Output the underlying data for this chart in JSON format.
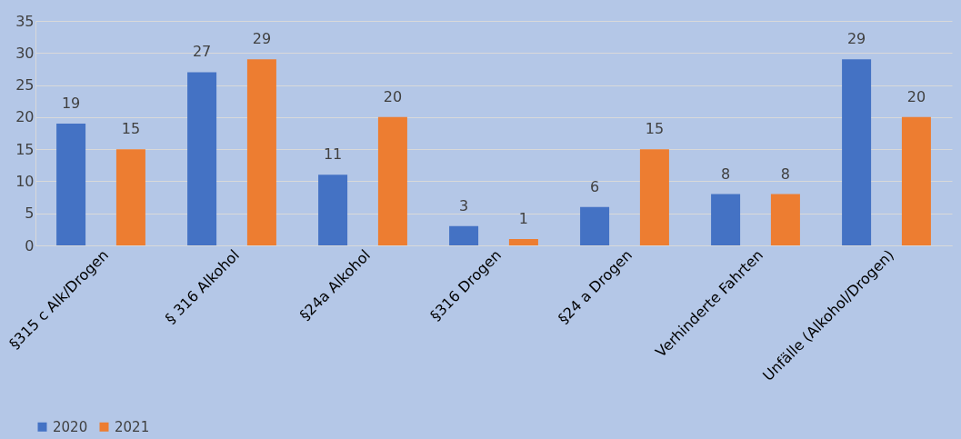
{
  "chart_data": {
    "type": "bar",
    "categories": [
      "§315 c Alk/Drogen",
      "§ 316 Alkohol",
      "§24a Alkohol",
      "§316 Drogen",
      "§24 a Drogen",
      "Verhinderte Fahrten",
      "Unfälle (Alkohol/Drogen)"
    ],
    "series": [
      {
        "name": "2020",
        "color": "#4472c4",
        "values": [
          19,
          27,
          11,
          3,
          6,
          8,
          29
        ]
      },
      {
        "name": "2021",
        "color": "#ed7d31",
        "values": [
          15,
          29,
          20,
          1,
          15,
          8,
          20
        ]
      }
    ],
    "ylim": [
      0,
      35
    ],
    "yticks": [
      0,
      5,
      10,
      15,
      20,
      25,
      30,
      35
    ],
    "grid": "y",
    "legend": "bottom",
    "data_labels": true
  }
}
